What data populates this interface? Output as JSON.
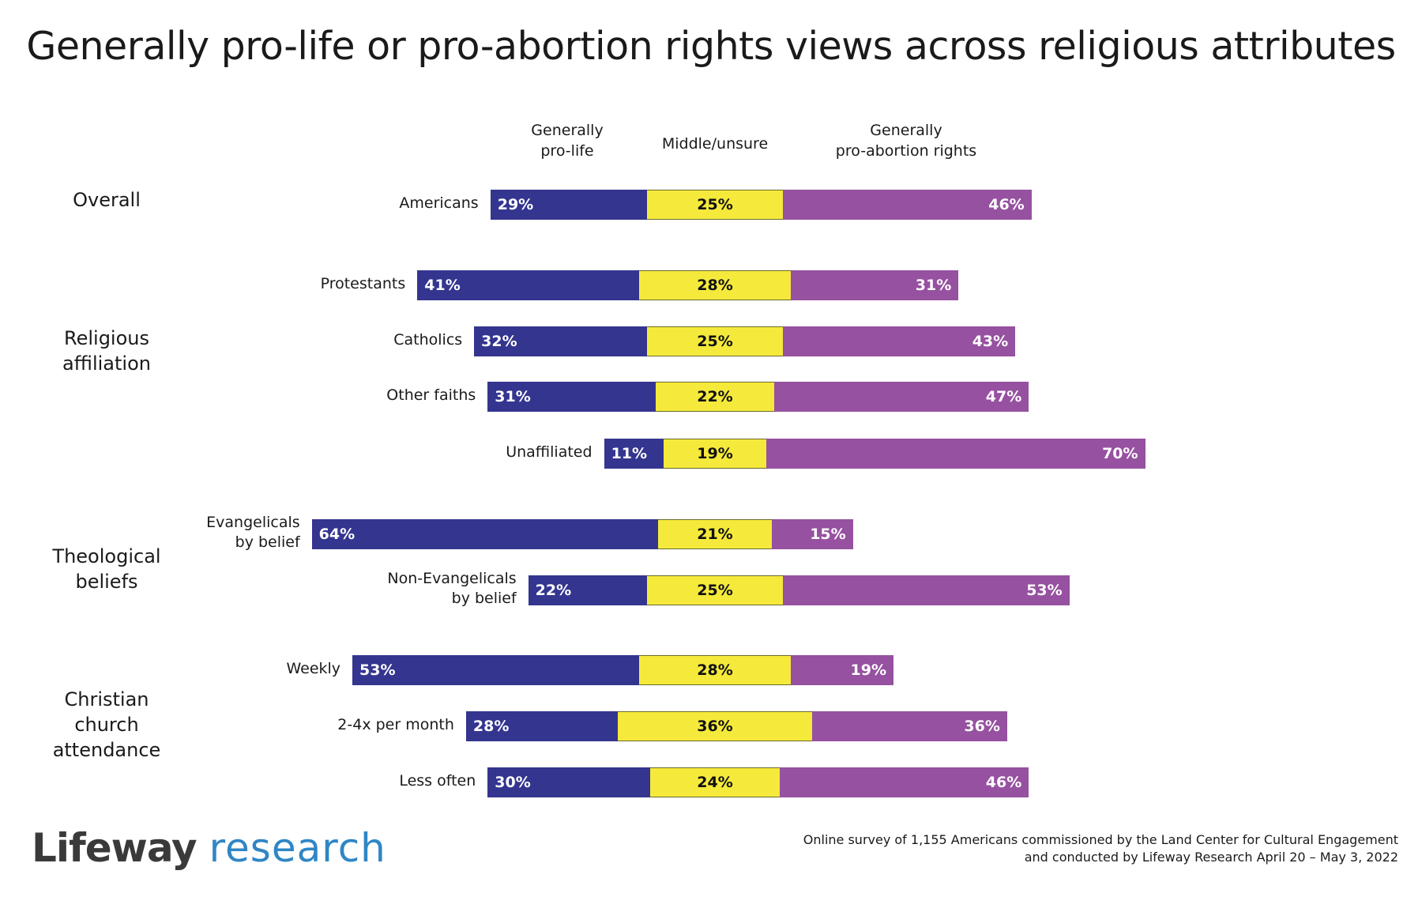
{
  "title": "Generally pro-life or pro-abortion rights views across religious attributes",
  "colors": {
    "pro_life": "#34358f",
    "middle": "#f5ea3b",
    "pro_abortion": "#9651a0",
    "middle_border": "#6b6b2a"
  },
  "chart_data": {
    "type": "bar",
    "orientation": "horizontal",
    "stacked": true,
    "unit": "%",
    "series": [
      {
        "name": "Generally\npro-life",
        "key": "pro_life"
      },
      {
        "name": "Middle/unsure",
        "key": "middle"
      },
      {
        "name": "Generally\npro-abortion rights",
        "key": "pro_abortion"
      }
    ],
    "groups": [
      {
        "label": "Overall",
        "rows": [
          {
            "label": "Americans",
            "values": [
              29,
              25,
              46
            ]
          }
        ]
      },
      {
        "label": "Religious\naffiliation",
        "rows": [
          {
            "label": "Protestants",
            "values": [
              41,
              28,
              31
            ]
          },
          {
            "label": "Catholics",
            "values": [
              32,
              25,
              43
            ]
          },
          {
            "label": "Other faiths",
            "values": [
              31,
              22,
              47
            ]
          },
          {
            "label": "Unaffiliated",
            "values": [
              11,
              19,
              70
            ]
          }
        ]
      },
      {
        "label": "Theological\nbeliefs",
        "rows": [
          {
            "label": "Evangelicals\nby belief",
            "values": [
              64,
              21,
              15
            ]
          },
          {
            "label": "Non-Evangelicals\nby belief",
            "values": [
              22,
              25,
              53
            ]
          }
        ]
      },
      {
        "label": "Christian\nchurch\nattendance",
        "rows": [
          {
            "label": "Weekly",
            "values": [
              53,
              28,
              19
            ]
          },
          {
            "label": "2-4x per month",
            "values": [
              28,
              36,
              36
            ]
          },
          {
            "label": "Less often",
            "values": [
              30,
              24,
              46
            ]
          }
        ]
      }
    ]
  },
  "brand": {
    "part1": "Lifeway",
    "part2": "research"
  },
  "footnote": "Online survey of 1,155 Americans commissioned by the Land Center for Cultural Engagement\nand conducted by Lifeway Research April 20 – May 3, 2022"
}
